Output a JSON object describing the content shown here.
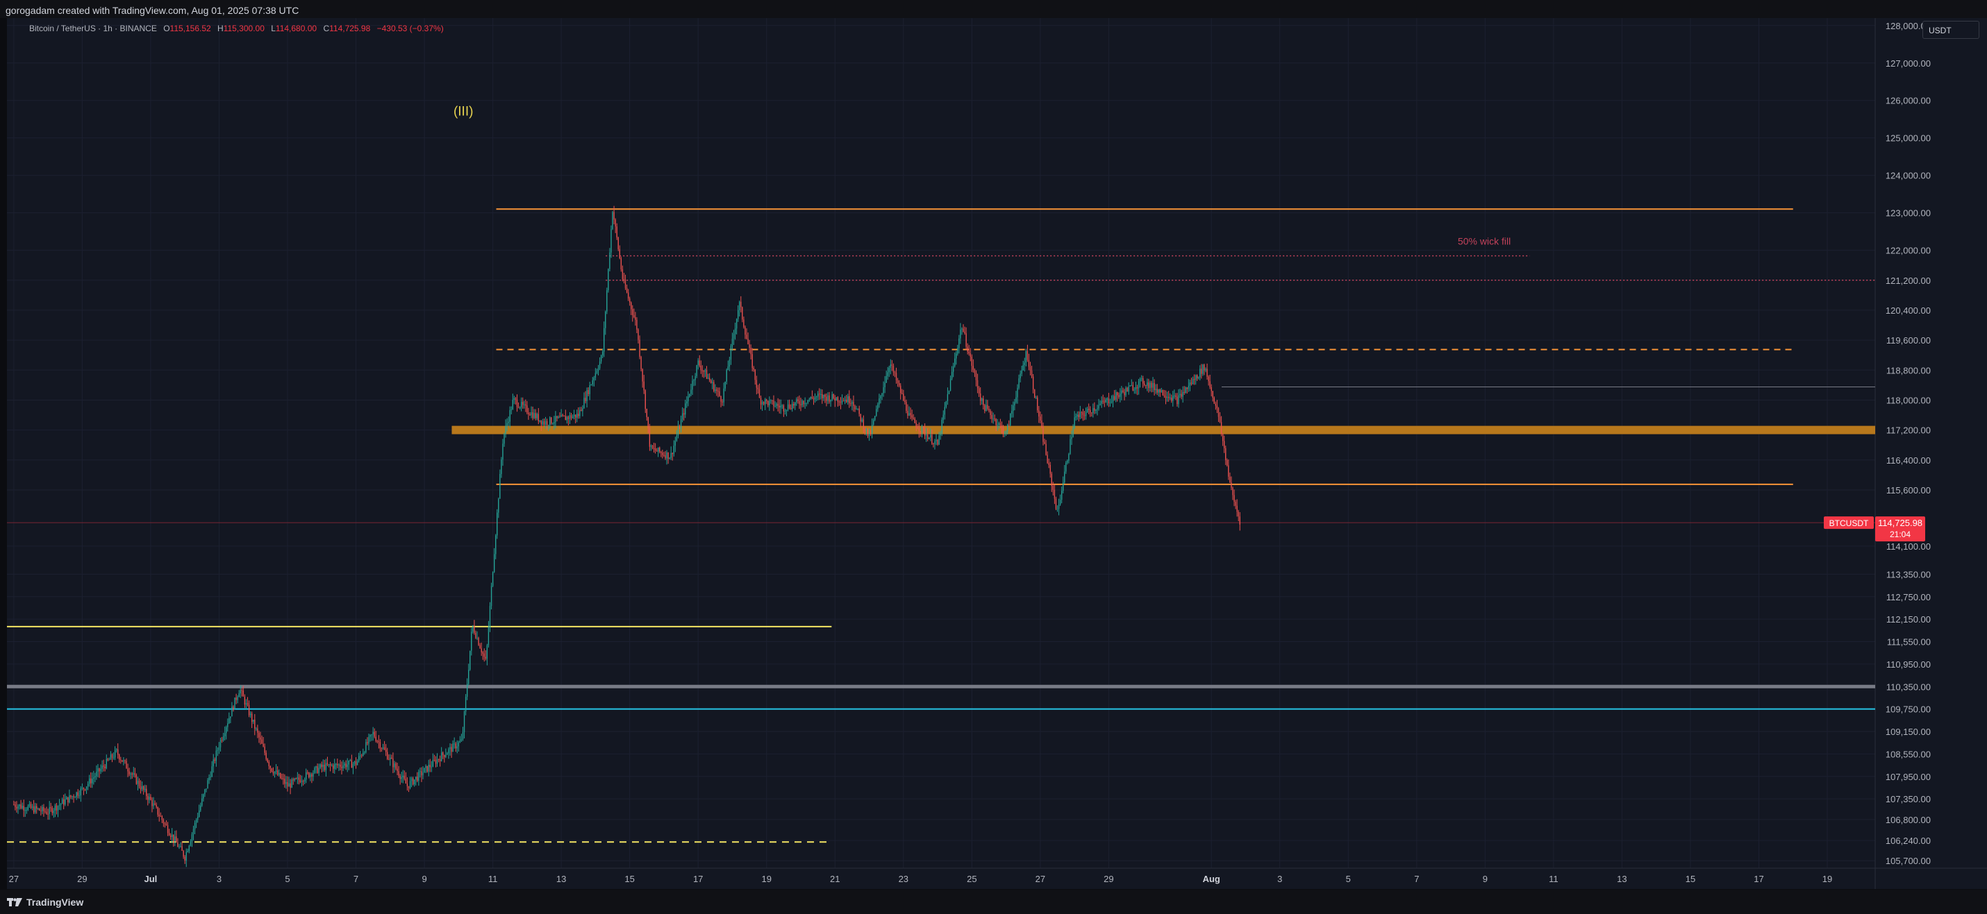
{
  "header": {
    "credit": "gorogadam created with TradingView.com, Aug 01, 2025 07:38 UTC"
  },
  "legend": {
    "symbol": "Bitcoin / TetherUS · 1h · BINANCE",
    "open_label": "O",
    "open": "115,156.52",
    "high_label": "H",
    "high": "115,300.00",
    "low_label": "L",
    "low": "114,680.00",
    "close_label": "C",
    "close": "114,725.98",
    "change": "−430.53 (−0.37%)"
  },
  "currency": "USDT",
  "annotations": {
    "wave": "(III)",
    "wick": "50% wick fill"
  },
  "price_axis": {
    "ticks": [
      {
        "v": 128000,
        "t": "128,000.00"
      },
      {
        "v": 127000,
        "t": "127,000.00"
      },
      {
        "v": 126000,
        "t": "126,000.00"
      },
      {
        "v": 125000,
        "t": "125,000.00"
      },
      {
        "v": 124000,
        "t": "124,000.00"
      },
      {
        "v": 123000,
        "t": "123,000.00"
      },
      {
        "v": 122000,
        "t": "122,000.00"
      },
      {
        "v": 121200,
        "t": "121,200.00"
      },
      {
        "v": 120400,
        "t": "120,400.00"
      },
      {
        "v": 119600,
        "t": "119,600.00"
      },
      {
        "v": 118800,
        "t": "118,800.00"
      },
      {
        "v": 118000,
        "t": "118,000.00"
      },
      {
        "v": 117200,
        "t": "117,200.00"
      },
      {
        "v": 116400,
        "t": "116,400.00"
      },
      {
        "v": 115600,
        "t": "115,600.00"
      },
      {
        "v": 114100,
        "t": "114,100.00"
      },
      {
        "v": 113350,
        "t": "113,350.00"
      },
      {
        "v": 112750,
        "t": "112,750.00"
      },
      {
        "v": 112150,
        "t": "112,150.00"
      },
      {
        "v": 111550,
        "t": "111,550.00"
      },
      {
        "v": 110950,
        "t": "110,950.00"
      },
      {
        "v": 110350,
        "t": "110,350.00"
      },
      {
        "v": 109750,
        "t": "109,750.00"
      },
      {
        "v": 109150,
        "t": "109,150.00"
      },
      {
        "v": 108550,
        "t": "108,550.00"
      },
      {
        "v": 107950,
        "t": "107,950.00"
      },
      {
        "v": 107350,
        "t": "107,350.00"
      },
      {
        "v": 106800,
        "t": "106,800.00"
      },
      {
        "v": 106240,
        "t": "106,240.00"
      },
      {
        "v": 105700,
        "t": "105,700.00"
      }
    ],
    "last_label": {
      "symbol": "BTCUSDT",
      "price": "114,725.98",
      "countdown": "21:04"
    }
  },
  "time_axis": {
    "ticks": [
      {
        "d": 0,
        "t": "27",
        "bold": false
      },
      {
        "d": 2,
        "t": "29",
        "bold": false
      },
      {
        "d": 4,
        "t": "Jul",
        "bold": true
      },
      {
        "d": 6,
        "t": "3",
        "bold": false
      },
      {
        "d": 8,
        "t": "5",
        "bold": false
      },
      {
        "d": 10,
        "t": "7",
        "bold": false
      },
      {
        "d": 12,
        "t": "9",
        "bold": false
      },
      {
        "d": 14,
        "t": "11",
        "bold": false
      },
      {
        "d": 16,
        "t": "13",
        "bold": false
      },
      {
        "d": 18,
        "t": "15",
        "bold": false
      },
      {
        "d": 20,
        "t": "17",
        "bold": false
      },
      {
        "d": 22,
        "t": "19",
        "bold": false
      },
      {
        "d": 24,
        "t": "21",
        "bold": false
      },
      {
        "d": 26,
        "t": "23",
        "bold": false
      },
      {
        "d": 28,
        "t": "25",
        "bold": false
      },
      {
        "d": 30,
        "t": "27",
        "bold": false
      },
      {
        "d": 32,
        "t": "29",
        "bold": false
      },
      {
        "d": 35,
        "t": "Aug",
        "bold": true
      },
      {
        "d": 37,
        "t": "3",
        "bold": false
      },
      {
        "d": 39,
        "t": "5",
        "bold": false
      },
      {
        "d": 41,
        "t": "7",
        "bold": false
      },
      {
        "d": 43,
        "t": "9",
        "bold": false
      },
      {
        "d": 45,
        "t": "11",
        "bold": false
      },
      {
        "d": 47,
        "t": "13",
        "bold": false
      },
      {
        "d": 49,
        "t": "15",
        "bold": false
      },
      {
        "d": 51,
        "t": "17",
        "bold": false
      },
      {
        "d": 53,
        "t": "19",
        "bold": false
      }
    ]
  },
  "chart_data": {
    "type": "candlestick",
    "interval": "1h",
    "x_unit": "days since Jun 27 00:00",
    "y_range": [
      105500,
      128200
    ],
    "x_range": [
      -0.2,
      54.4
    ],
    "ohlc_sample": [
      {
        "day": 0,
        "price": 107200
      },
      {
        "day": 1,
        "price": 107000
      },
      {
        "day": 2,
        "price": 107600
      },
      {
        "day": 3,
        "price": 108600
      },
      {
        "day": 4,
        "price": 107300
      },
      {
        "day": 5,
        "price": 105800
      },
      {
        "day": 6,
        "price": 108800
      },
      {
        "day": 6.6,
        "price": 110300
      },
      {
        "day": 7.5,
        "price": 108200
      },
      {
        "day": 8,
        "price": 107700
      },
      {
        "day": 9,
        "price": 108200
      },
      {
        "day": 10,
        "price": 108300
      },
      {
        "day": 10.5,
        "price": 109100
      },
      {
        "day": 11.5,
        "price": 107700
      },
      {
        "day": 12.5,
        "price": 108500
      },
      {
        "day": 13.1,
        "price": 108900
      },
      {
        "day": 13.4,
        "price": 112000
      },
      {
        "day": 13.8,
        "price": 111000
      },
      {
        "day": 14,
        "price": 113500
      },
      {
        "day": 14.3,
        "price": 117000
      },
      {
        "day": 14.6,
        "price": 118000
      },
      {
        "day": 15.5,
        "price": 117400
      },
      {
        "day": 16.5,
        "price": 117600
      },
      {
        "day": 17.2,
        "price": 119200
      },
      {
        "day": 17.5,
        "price": 123100
      },
      {
        "day": 17.8,
        "price": 121200
      },
      {
        "day": 18.2,
        "price": 120000
      },
      {
        "day": 18.6,
        "price": 116700
      },
      {
        "day": 19.2,
        "price": 116500
      },
      {
        "day": 20,
        "price": 119000
      },
      {
        "day": 20.7,
        "price": 118000
      },
      {
        "day": 21.2,
        "price": 120600
      },
      {
        "day": 21.8,
        "price": 118000
      },
      {
        "day": 22.5,
        "price": 117800
      },
      {
        "day": 23.5,
        "price": 118100
      },
      {
        "day": 24.5,
        "price": 118000
      },
      {
        "day": 25,
        "price": 117000
      },
      {
        "day": 25.6,
        "price": 119000
      },
      {
        "day": 26.2,
        "price": 117500
      },
      {
        "day": 27,
        "price": 116800
      },
      {
        "day": 27.7,
        "price": 120000
      },
      {
        "day": 28.3,
        "price": 117900
      },
      {
        "day": 29,
        "price": 117100
      },
      {
        "day": 29.6,
        "price": 119300
      },
      {
        "day": 30.2,
        "price": 116400
      },
      {
        "day": 30.5,
        "price": 115000
      },
      {
        "day": 31,
        "price": 117500
      },
      {
        "day": 32,
        "price": 118000
      },
      {
        "day": 33,
        "price": 118500
      },
      {
        "day": 34,
        "price": 118000
      },
      {
        "day": 34.8,
        "price": 118900
      },
      {
        "day": 35.2,
        "price": 117600
      },
      {
        "day": 35.6,
        "price": 115500
      },
      {
        "day": 35.85,
        "price": 114725.98
      }
    ],
    "levels": [
      {
        "name": "resistance-top",
        "price": 123100,
        "style": "solid",
        "color": "#f79437"
      },
      {
        "name": "wick-fill-upper",
        "price": 121850,
        "style": "dotted",
        "color": "#c2425a"
      },
      {
        "name": "wick-fill-lower",
        "price": 121200,
        "style": "dotted",
        "color": "#c2425a"
      },
      {
        "name": "dashed-resistance",
        "price": 119350,
        "style": "dashed",
        "color": "#f79437"
      },
      {
        "name": "gray-level",
        "price": 118350,
        "style": "solid",
        "color": "#787b86"
      },
      {
        "name": "thick-band",
        "price": 117200,
        "style": "band",
        "color": "#b8781c"
      },
      {
        "name": "support-orange",
        "price": 115750,
        "style": "solid",
        "color": "#f79437"
      },
      {
        "name": "last-price",
        "price": 114725.98,
        "style": "solid",
        "color": "#7a2733"
      },
      {
        "name": "yellow-level",
        "price": 111950,
        "style": "solid",
        "color": "#f5e663"
      },
      {
        "name": "gray-thick",
        "price": 110350,
        "style": "solid",
        "color": "#787b86"
      },
      {
        "name": "cyan-level",
        "price": 109750,
        "style": "solid",
        "color": "#27c5e6"
      },
      {
        "name": "yellow-dashed",
        "price": 106200,
        "style": "dashed",
        "color": "#f5e663"
      }
    ]
  },
  "colors": {
    "up": "#26a69a",
    "down": "#ef5350",
    "bg": "#131722",
    "grid": "#1c2030",
    "axis_text": "#b2b5be",
    "last": "#f23645"
  },
  "footer": {
    "brand": "TradingView"
  }
}
